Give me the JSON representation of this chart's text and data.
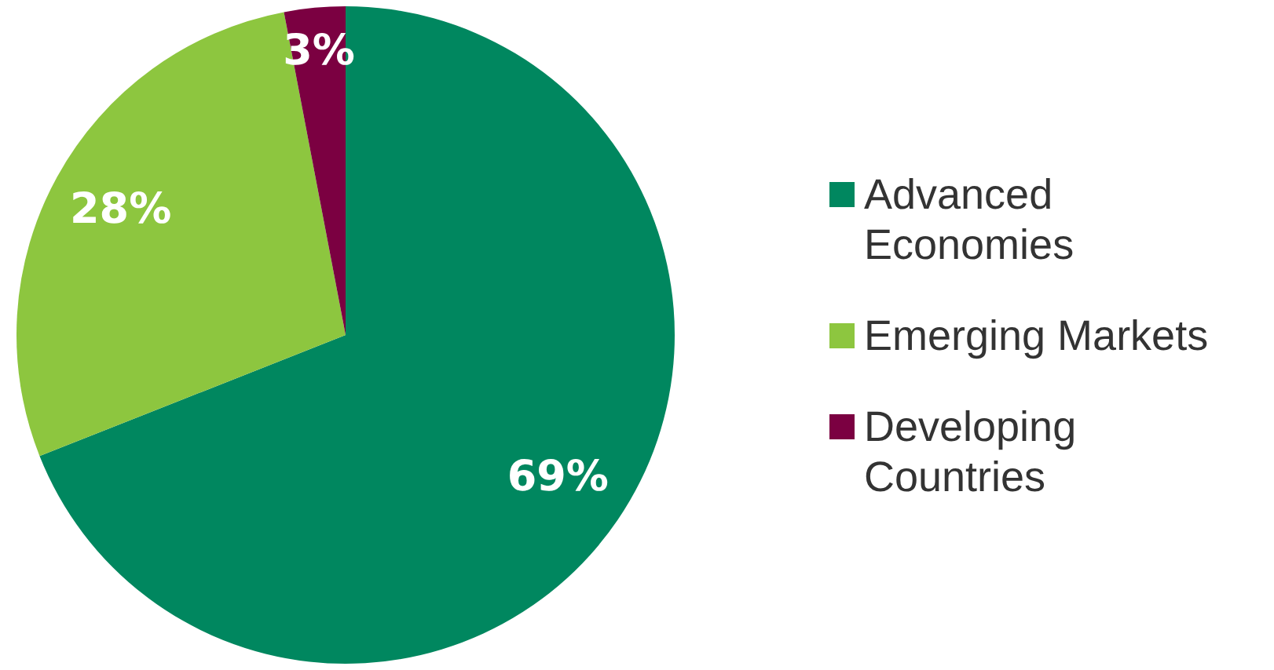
{
  "chart_data": {
    "type": "pie",
    "categories": [
      "Advanced Economies",
      "Emerging Markets",
      "Developing Countries"
    ],
    "values": [
      69,
      28,
      3
    ],
    "colors": [
      "#00875f",
      "#8dc63f",
      "#7b0041"
    ],
    "value_labels": [
      "69%",
      "28%",
      "3%"
    ],
    "legend": "right"
  }
}
